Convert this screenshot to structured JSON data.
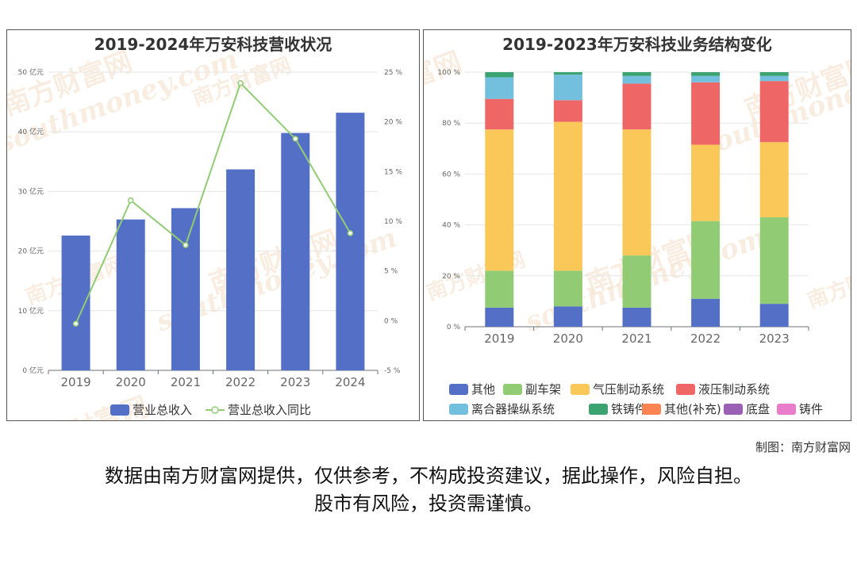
{
  "left": {
    "title": "2019-2024年万安科技营收状况",
    "legend": [
      "营业总收入",
      "营业总收入同比"
    ],
    "colors": {
      "bar": "#5470c6",
      "line": "#91cc75"
    }
  },
  "right": {
    "title": "2019-2023年万安科技业务结构变化",
    "legend": [
      "其他",
      "副车架",
      "气压制动系统",
      "液压制动系统",
      "离合器操纵系统",
      "铁铸件",
      "其他(补充)",
      "底盘",
      "铸件"
    ],
    "colors": [
      "#5470c6",
      "#91cc75",
      "#fac858",
      "#ee6666",
      "#73c0de",
      "#3ba272",
      "#fc8452",
      "#9a60b4",
      "#ea7ccc"
    ]
  },
  "watermark": {
    "cn": "南方财富网",
    "en": "southmoney.com"
  },
  "credit": "制图：南方财富网",
  "disclaimer": {
    "line1": "数据由南方财富网提供，仅供参考，不构成投资建议，据此操作，风险自担。",
    "line2": "股市有风险，投资需谨慎。"
  },
  "chart_data": [
    {
      "type": "bar",
      "title": "2019-2024年万安科技营收状况",
      "categories": [
        "2019",
        "2020",
        "2021",
        "2022",
        "2023",
        "2024"
      ],
      "ylim": [
        0,
        50
      ],
      "yticks": [
        "0 亿元",
        "10 亿元",
        "20 亿元",
        "30 亿元",
        "40 亿元",
        "50 亿元"
      ],
      "y2lim": [
        -5,
        25
      ],
      "y2ticks": [
        "-5 %",
        "0 %",
        "5 %",
        "10 %",
        "15 %",
        "20 %",
        "25 %"
      ],
      "series": [
        {
          "name": "营业总收入",
          "type": "bar",
          "values": [
            22.6,
            25.3,
            27.2,
            33.7,
            39.8,
            43.2
          ]
        },
        {
          "name": "营业总收入同比",
          "type": "line",
          "axis": "right",
          "values": [
            -0.3,
            12.1,
            7.6,
            23.9,
            18.3,
            8.8
          ]
        }
      ]
    },
    {
      "type": "bar",
      "stacked": true,
      "title": "2019-2023年万安科技业务结构变化",
      "categories": [
        "2019",
        "2020",
        "2021",
        "2022",
        "2023"
      ],
      "ylim": [
        0,
        100
      ],
      "yticks": [
        "0 %",
        "20 %",
        "40 %",
        "60 %",
        "80 %",
        "100 %"
      ],
      "series": [
        {
          "name": "其他",
          "values": [
            7.5,
            8.0,
            7.5,
            11.0,
            9.0
          ]
        },
        {
          "name": "副车架",
          "values": [
            14.5,
            14.0,
            20.5,
            30.5,
            34.0
          ]
        },
        {
          "name": "气压制动系统",
          "values": [
            55.5,
            58.5,
            49.5,
            30.0,
            29.5
          ]
        },
        {
          "name": "液压制动系统",
          "values": [
            12.0,
            8.5,
            18.0,
            24.5,
            24.0
          ]
        },
        {
          "name": "离合器操纵系统",
          "values": [
            8.5,
            10.0,
            3.0,
            2.5,
            2.0
          ]
        },
        {
          "name": "铁铸件",
          "values": [
            2.0,
            1.0,
            1.5,
            1.5,
            1.5
          ]
        },
        {
          "name": "其他(补充)",
          "values": [
            0,
            0,
            0,
            0,
            0
          ]
        },
        {
          "name": "底盘",
          "values": [
            0,
            0,
            0,
            0,
            0
          ]
        },
        {
          "name": "铸件",
          "values": [
            0,
            0,
            0,
            0,
            0
          ]
        }
      ]
    }
  ]
}
